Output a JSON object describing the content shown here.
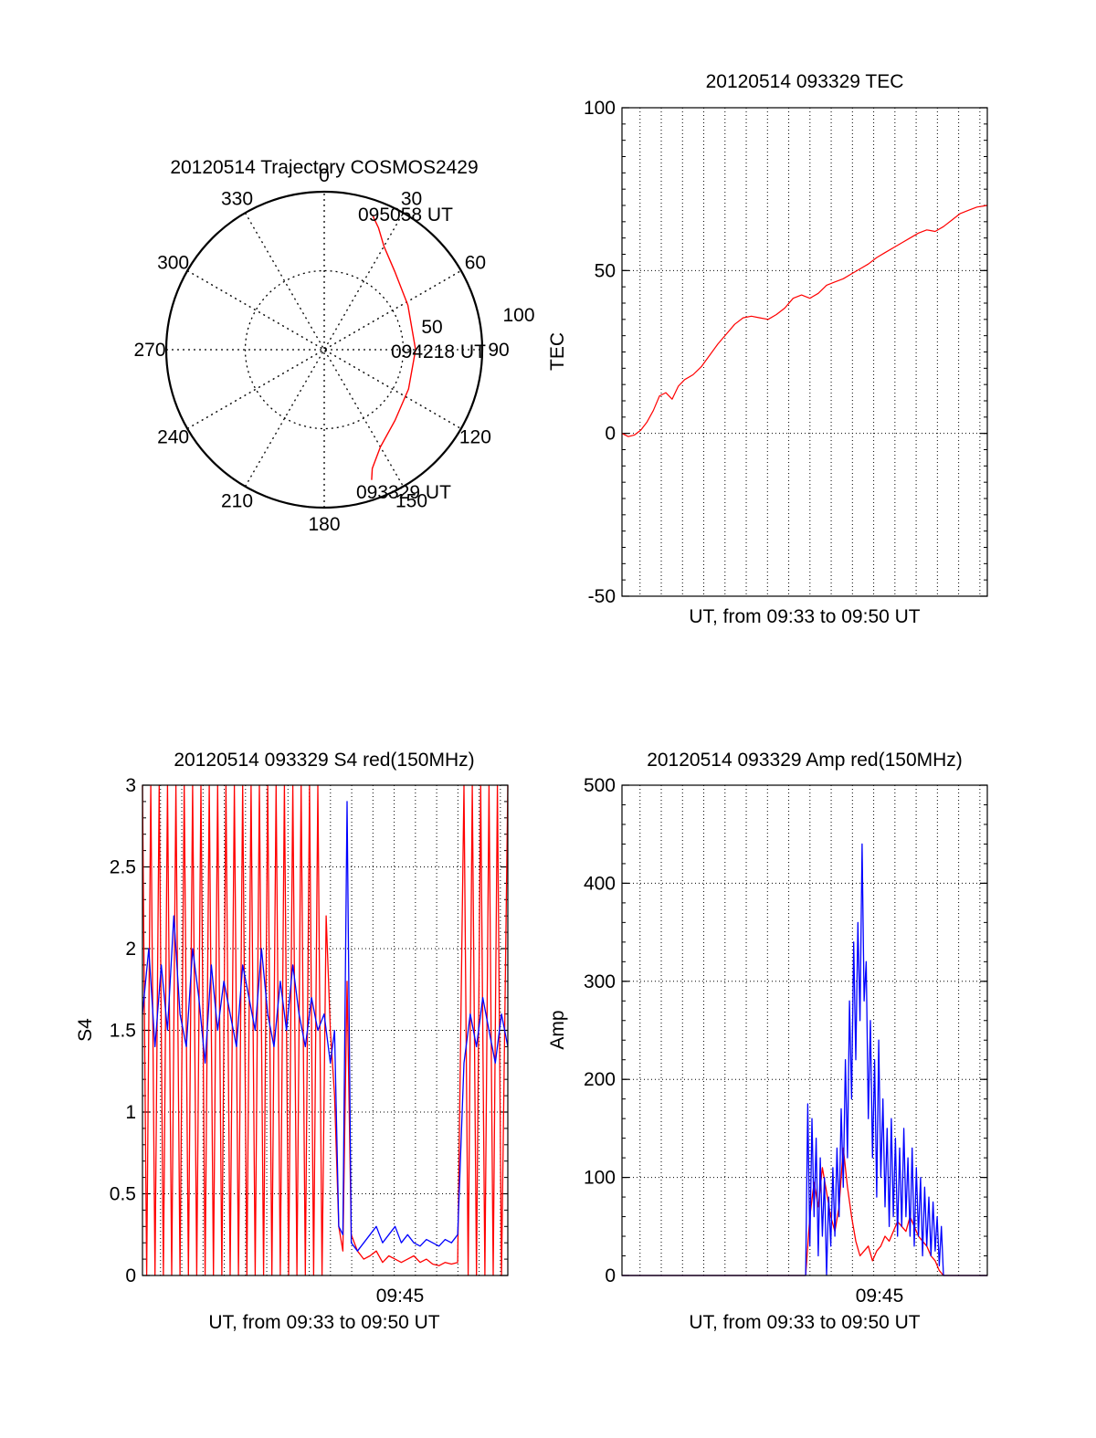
{
  "chart_data": [
    {
      "type": "polar",
      "title": "20120514 Trajectory COSMOS2429",
      "angle_labels": [
        "0",
        "30",
        "60",
        "90",
        "120",
        "150",
        "180",
        "210",
        "240",
        "270",
        "300",
        "330"
      ],
      "radial_labels": [
        "50",
        "100"
      ],
      "trajectory": {
        "azimuth_deg": [
          160,
          158,
          150,
          135,
          115,
          90,
          62,
          42,
          30,
          24,
          20
        ],
        "elevation_deg": [
          11,
          17,
          26,
          33,
          37,
          38,
          36,
          30,
          22,
          14,
          9
        ]
      },
      "annotations": {
        "start": "093329 UT",
        "mid": "094218 UT",
        "end": "095058 UT"
      },
      "colors": {
        "trajectory": "#ff0000"
      }
    },
    {
      "type": "line",
      "title": "20120514 093329 TEC",
      "xlabel": "UT, from 09:33 to 09:50 UT",
      "ylabel": "TEC",
      "xlim": [
        0,
        17.5
      ],
      "ylim": [
        -50,
        100
      ],
      "y_ticks": [
        "-50",
        "0",
        "50",
        "100"
      ],
      "grid": true,
      "series": [
        {
          "color": "#ff0000",
          "x": [
            0.0,
            0.3,
            0.6,
            0.9,
            1.2,
            1.5,
            1.8,
            2.1,
            2.4,
            2.7,
            3.0,
            3.4,
            3.8,
            4.2,
            4.6,
            5.0,
            5.4,
            5.8,
            6.2,
            6.6,
            7.0,
            7.4,
            7.8,
            8.2,
            8.6,
            9.0,
            9.4,
            9.8,
            10.2,
            10.6,
            11.0,
            11.4,
            11.8,
            12.2,
            12.6,
            13.0,
            13.4,
            13.8,
            14.2,
            14.6,
            15.0,
            15.4,
            15.8,
            16.2,
            16.6,
            17.0,
            17.5
          ],
          "y": [
            0.0,
            -1.0,
            -0.5,
            1.0,
            3.5,
            7.0,
            11.5,
            12.5,
            10.5,
            14.5,
            16.5,
            18.0,
            20.5,
            24.0,
            27.5,
            30.5,
            33.5,
            35.5,
            36.0,
            35.5,
            35.0,
            36.5,
            38.5,
            41.5,
            42.5,
            41.5,
            43.0,
            45.5,
            46.5,
            47.5,
            49.0,
            50.5,
            52.0,
            54.0,
            55.5,
            57.0,
            58.5,
            60.0,
            61.5,
            62.5,
            62.0,
            63.5,
            65.5,
            67.5,
            68.5,
            69.5,
            70.0
          ]
        }
      ]
    },
    {
      "type": "line",
      "title": "20120514 093329 S4 red(150MHz)",
      "xlabel": "UT, from 09:33 to 09:50 UT",
      "ylabel": "S4",
      "xlim": [
        0,
        17.5
      ],
      "ylim": [
        0,
        3
      ],
      "y_ticks": [
        "0",
        "0.5",
        "1",
        "1.5",
        "2",
        "2.5",
        "3"
      ],
      "x_tick_label": "09:45",
      "x_tick_value": 12,
      "grid": true,
      "series": [
        {
          "color": "#ff0000",
          "x": [
            0.0,
            0.2,
            0.4,
            0.6,
            0.8,
            1.0,
            1.2,
            1.4,
            1.6,
            1.8,
            2.0,
            2.2,
            2.4,
            2.6,
            2.8,
            3.0,
            3.2,
            3.4,
            3.6,
            3.8,
            4.0,
            4.2,
            4.4,
            4.6,
            4.8,
            5.0,
            5.2,
            5.4,
            5.6,
            5.8,
            6.0,
            6.2,
            6.4,
            6.6,
            6.8,
            7.0,
            7.2,
            7.4,
            7.6,
            7.8,
            8.0,
            8.2,
            8.4,
            8.6,
            8.8,
            9.0,
            9.2,
            9.4,
            9.6,
            9.8,
            10.0,
            10.3,
            10.6,
            10.9,
            11.2,
            11.5,
            11.8,
            12.1,
            12.4,
            12.7,
            13.0,
            13.3,
            13.6,
            13.9,
            14.2,
            14.5,
            14.8,
            15.1,
            15.4,
            15.6,
            15.8,
            16.0,
            16.2,
            16.4,
            16.6,
            16.8,
            17.0,
            17.2,
            17.5
          ],
          "y": [
            3.0,
            0.0,
            3.0,
            0.0,
            3.0,
            0.0,
            3.0,
            0.0,
            3.0,
            0.0,
            3.0,
            0.0,
            3.0,
            0.0,
            3.0,
            0.0,
            3.0,
            0.0,
            3.0,
            0.0,
            3.0,
            0.0,
            3.0,
            0.0,
            3.0,
            0.0,
            3.0,
            0.0,
            3.0,
            0.0,
            3.0,
            0.0,
            3.0,
            0.0,
            3.0,
            0.0,
            3.0,
            0.0,
            3.0,
            0.0,
            3.0,
            0.0,
            3.0,
            0.0,
            2.2,
            1.5,
            1.1,
            0.3,
            0.15,
            1.8,
            0.25,
            0.15,
            0.1,
            0.12,
            0.15,
            0.08,
            0.12,
            0.1,
            0.08,
            0.1,
            0.12,
            0.08,
            0.1,
            0.07,
            0.06,
            0.08,
            0.07,
            0.08,
            3.0,
            0.0,
            3.0,
            0.0,
            3.0,
            0.0,
            3.0,
            0.0,
            3.0,
            0.0,
            3.0
          ]
        },
        {
          "color": "#0000ff",
          "x": [
            0.0,
            0.3,
            0.6,
            0.9,
            1.2,
            1.5,
            1.8,
            2.1,
            2.4,
            2.7,
            3.0,
            3.3,
            3.6,
            3.9,
            4.2,
            4.5,
            4.8,
            5.1,
            5.4,
            5.7,
            6.0,
            6.3,
            6.6,
            6.9,
            7.2,
            7.5,
            7.8,
            8.1,
            8.4,
            8.7,
            9.0,
            9.2,
            9.4,
            9.6,
            9.8,
            10.0,
            10.3,
            10.6,
            10.9,
            11.2,
            11.5,
            11.8,
            12.1,
            12.4,
            12.7,
            13.0,
            13.3,
            13.6,
            13.9,
            14.2,
            14.5,
            14.8,
            15.1,
            15.4,
            15.7,
            16.0,
            16.3,
            16.6,
            16.9,
            17.2,
            17.5
          ],
          "y": [
            1.6,
            2.0,
            1.4,
            1.9,
            1.5,
            2.2,
            1.6,
            1.4,
            2.0,
            1.7,
            1.3,
            1.9,
            1.5,
            1.8,
            1.6,
            1.4,
            1.9,
            1.7,
            1.5,
            2.0,
            1.6,
            1.4,
            1.8,
            1.5,
            1.9,
            1.6,
            1.4,
            1.7,
            1.5,
            1.6,
            1.3,
            1.5,
            0.3,
            0.25,
            2.9,
            0.2,
            0.15,
            0.2,
            0.25,
            0.3,
            0.2,
            0.25,
            0.3,
            0.2,
            0.25,
            0.2,
            0.18,
            0.22,
            0.2,
            0.18,
            0.22,
            0.2,
            0.25,
            1.3,
            1.6,
            1.4,
            1.7,
            1.5,
            1.3,
            1.6,
            1.4
          ]
        }
      ]
    },
    {
      "type": "line",
      "title": "20120514 093329 Amp red(150MHz)",
      "xlabel": "UT, from 09:33 to 09:50 UT",
      "ylabel": "Amp",
      "xlim": [
        0,
        17.5
      ],
      "ylim": [
        0,
        500
      ],
      "y_ticks": [
        "0",
        "100",
        "200",
        "300",
        "400",
        "500"
      ],
      "x_tick_label": "09:45",
      "x_tick_value": 12,
      "grid": true,
      "series": [
        {
          "color": "#ff0000",
          "x": [
            0.0,
            8.8,
            9.0,
            9.2,
            9.4,
            9.6,
            9.8,
            10.0,
            10.2,
            10.4,
            10.6,
            10.8,
            11.0,
            11.2,
            11.4,
            11.6,
            11.8,
            12.0,
            12.2,
            12.4,
            12.6,
            12.8,
            13.0,
            13.2,
            13.4,
            13.6,
            13.8,
            14.0,
            14.2,
            14.4,
            14.6,
            14.8,
            15.0,
            15.2,
            15.4,
            17.5
          ],
          "y": [
            0,
            0,
            60,
            95,
            70,
            110,
            85,
            60,
            45,
            70,
            130,
            90,
            60,
            35,
            20,
            25,
            30,
            15,
            25,
            30,
            40,
            35,
            45,
            55,
            50,
            45,
            60,
            50,
            40,
            35,
            30,
            20,
            15,
            5,
            0,
            0
          ]
        },
        {
          "color": "#0000ff",
          "x": [
            0.0,
            8.8,
            8.9,
            9.0,
            9.1,
            9.2,
            9.3,
            9.4,
            9.5,
            9.6,
            9.7,
            9.8,
            9.9,
            10.0,
            10.1,
            10.2,
            10.3,
            10.4,
            10.5,
            10.6,
            10.7,
            10.8,
            10.9,
            11.0,
            11.1,
            11.2,
            11.3,
            11.4,
            11.5,
            11.6,
            11.7,
            11.8,
            11.9,
            12.0,
            12.1,
            12.2,
            12.3,
            12.4,
            12.5,
            12.6,
            12.7,
            12.8,
            12.9,
            13.0,
            13.1,
            13.2,
            13.3,
            13.4,
            13.5,
            13.6,
            13.7,
            13.8,
            13.9,
            14.0,
            14.1,
            14.2,
            14.3,
            14.4,
            14.5,
            14.6,
            14.7,
            14.8,
            14.9,
            15.0,
            15.1,
            15.2,
            15.3,
            15.4,
            17.5
          ],
          "y": [
            0,
            0,
            175,
            30,
            160,
            60,
            140,
            20,
            120,
            40,
            100,
            0,
            80,
            30,
            110,
            40,
            130,
            60,
            170,
            90,
            220,
            120,
            280,
            180,
            340,
            220,
            360,
            260,
            440,
            280,
            320,
            160,
            260,
            120,
            220,
            80,
            240,
            100,
            180,
            70,
            150,
            50,
            160,
            60,
            140,
            40,
            130,
            50,
            150,
            60,
            120,
            40,
            130,
            30,
            110,
            40,
            100,
            20,
            90,
            30,
            80,
            20,
            75,
            25,
            60,
            10,
            50,
            0,
            0
          ]
        }
      ]
    }
  ]
}
